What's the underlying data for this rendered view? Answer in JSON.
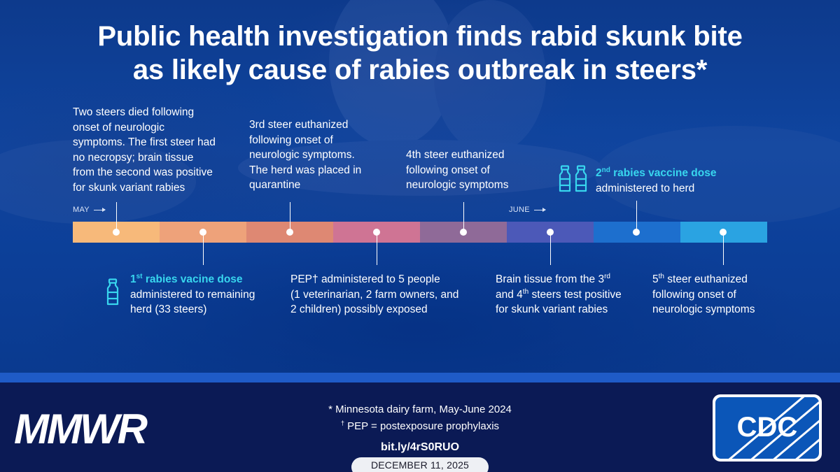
{
  "title": {
    "line1": "Public health investigation finds rabid skunk bite",
    "line2": "as likely cause of rabies outbreak in steers*"
  },
  "months": {
    "may": "MAY",
    "june": "JUNE"
  },
  "colors": {
    "segments": [
      "#f7b97a",
      "#eea27a",
      "#de8873",
      "#cf7494",
      "#8f6a98",
      "#4c59b8",
      "#1d6fce",
      "#2aa3e2"
    ],
    "highlight": "#38d6ee"
  },
  "events": {
    "e1": {
      "lines": [
        "Two steers died following",
        "onset of neurologic",
        "symptoms. The first steer had",
        "no necropsy; brain tissue",
        "from the second was positive",
        "for skunk variant rabies"
      ]
    },
    "e2": {
      "title_pre": "1",
      "title_sup": "st",
      "title_post": " rabies vacine dose",
      "lines": [
        "administered to remaining",
        "herd (33 steers)"
      ],
      "icon": "vaccine-vial-icon"
    },
    "e3": {
      "lines": [
        "3rd steer euthanized",
        "following onset of",
        "neurologic symptoms.",
        "The herd was placed in",
        "quarantine"
      ]
    },
    "e4": {
      "lines": [
        "PEP† administered to 5 people",
        "(1 veterinarian, 2 farm owners, and",
        "2 children) possibly exposed"
      ]
    },
    "e5": {
      "lines": [
        "4th steer euthanized",
        "following onset of",
        "neurologic symptoms"
      ]
    },
    "e6": {
      "line1_pre": "Brain tissue from the 3",
      "line1_sup": "rd",
      "line2_pre": "and 4",
      "line2_sup": "th",
      "line2_post": " steers test positive",
      "line3": "for skunk variant rabies"
    },
    "e7": {
      "title_pre": "2",
      "title_sup": "nd",
      "title_post": " rabies vaccine dose",
      "lines": [
        "administered to herd"
      ],
      "icon": "vaccine-vials-icon"
    },
    "e8": {
      "line1_pre": "5",
      "line1_sup": "th",
      "line1_post": " steer euthanized",
      "lines": [
        "following onset of",
        "neurologic symptoms"
      ]
    }
  },
  "footer": {
    "brand": "MMWR",
    "note1": "* Minnesota dairy farm, May-June 2024",
    "note2_sup": "†",
    "note2": " PEP = postexposure prophylaxis",
    "link": "bit.ly/4rS0RUO",
    "date": "DECEMBER 11, 2025",
    "logo_text": "CDC"
  }
}
